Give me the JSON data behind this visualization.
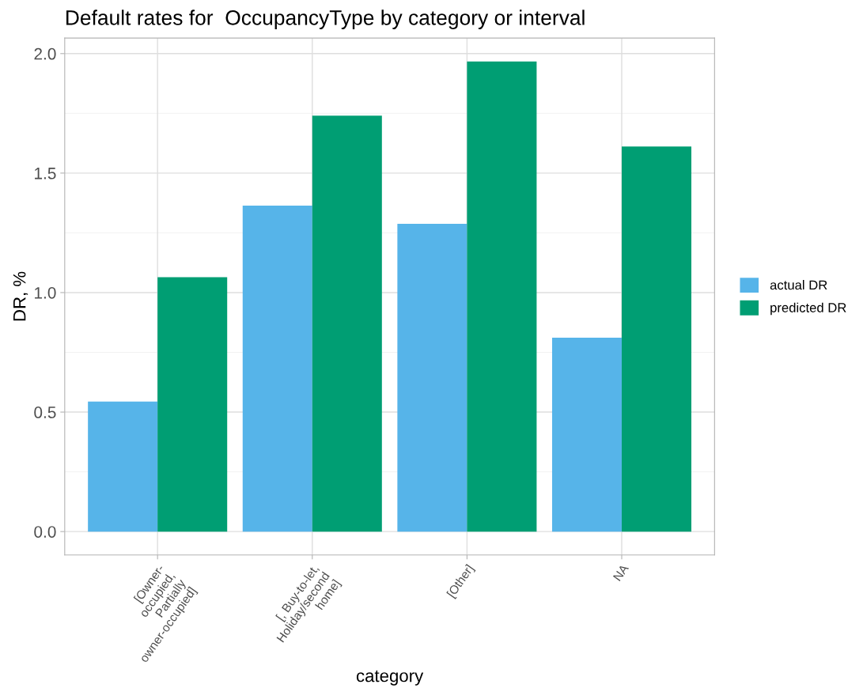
{
  "chart_data": {
    "type": "bar",
    "title": "Default rates for  OccupancyType by category or interval",
    "xlabel": "category",
    "ylabel": "DR, %",
    "categories": [
      "[Owner-\noccupied,\nPartially\nowner-occupied]",
      "[, Buy-to-let,\nHoliday/second\nhome]",
      "[Other]",
      "NA"
    ],
    "series": [
      {
        "name": "actual DR",
        "color": "#56b4e9",
        "values": [
          0.544,
          1.364,
          1.288,
          0.811
        ]
      },
      {
        "name": "predicted DR",
        "color": "#009e73",
        "values": [
          1.064,
          1.74,
          1.967,
          1.611
        ]
      }
    ],
    "ylim": [
      -0.098,
      2.065
    ],
    "yticks": [
      {
        "value": 0,
        "label": "0.0"
      },
      {
        "value": 0.5,
        "label": "0.5"
      },
      {
        "value": 1,
        "label": "1.0"
      },
      {
        "value": 1.5,
        "label": "1.5"
      },
      {
        "value": 2,
        "label": "2.0"
      }
    ],
    "grid": true,
    "legend": "right"
  }
}
